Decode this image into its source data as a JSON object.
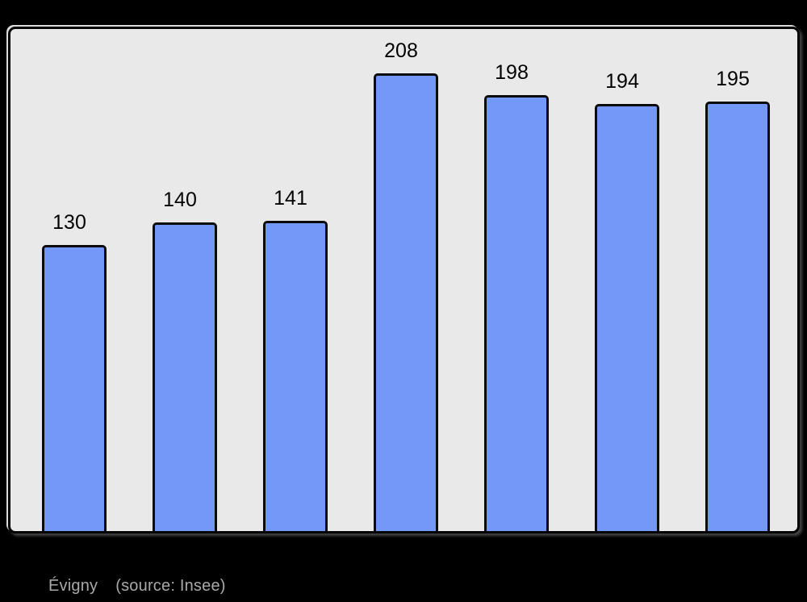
{
  "chart_data": {
    "type": "bar",
    "values": [
      130,
      140,
      141,
      208,
      198,
      194,
      195
    ],
    "value_labels": [
      "130",
      "140",
      "141",
      "208",
      "198",
      "194",
      "195"
    ],
    "title": "Évigny",
    "source_note": "(source: Insee)",
    "xlabel": "",
    "ylabel": "",
    "ylim": [
      0,
      228
    ],
    "grid": false,
    "legend": "none",
    "value_labels_position": "above-bars",
    "colors": {
      "bar_fill": "#7398F8",
      "bar_border": "#0A0A0A",
      "plot_background": "#E9E9E9",
      "plot_frame_border": "#000000",
      "page_background": "#000000",
      "value_label_color": "#000000",
      "caption_color": "#A9A9A9"
    }
  }
}
